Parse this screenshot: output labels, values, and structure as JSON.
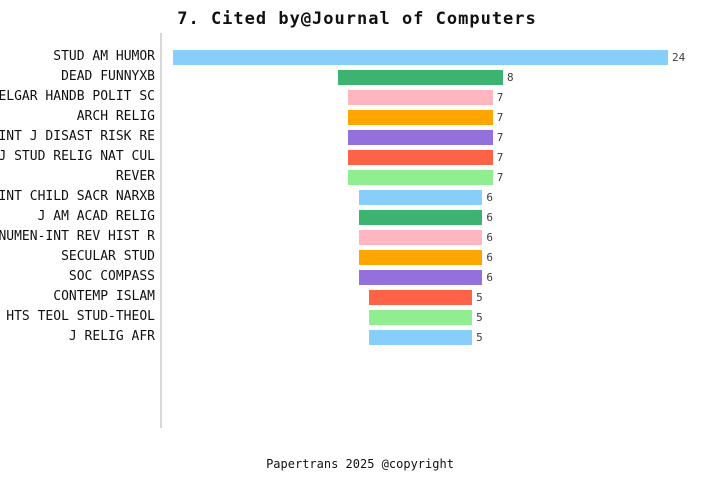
{
  "footer": {
    "caption": "Papertrans 2025 @copyright"
  },
  "chart_data": {
    "type": "bar",
    "orientation": "horizontal-centered-funnel",
    "title": "7. Cited by@Journal of Computers",
    "categories": [
      "STUD AM HUMOR",
      "DEAD FUNNYXB",
      "ELGAR HANDB POLIT SC",
      "ARCH RELIG",
      "INT J DISAST RISK RE",
      "J STUD RELIG NAT CUL",
      "REVER",
      "INT CHILD SACR NARXB",
      "J AM ACAD RELIG",
      "NUMEN-INT REV HIST R",
      "SECULAR STUD",
      "SOC COMPASS",
      "CONTEMP ISLAM",
      "HTS TEOL STUD-THEOL",
      "J RELIG AFR"
    ],
    "values": [
      24,
      8,
      7,
      7,
      7,
      7,
      7,
      6,
      6,
      6,
      6,
      6,
      5,
      5,
      5
    ],
    "bar_colors": [
      "#87CEFA",
      "#3CB371",
      "#FFB6C1",
      "#FFA500",
      "#9370DB",
      "#FF6347",
      "#90EE90",
      "#87CEFA",
      "#3CB371",
      "#FFB6C1",
      "#FFA500",
      "#9370DB",
      "#FF6347",
      "#90EE90",
      "#87CEFA"
    ],
    "palette_cycle": [
      "#87CEFA",
      "#3CB371",
      "#FFB6C1",
      "#FFA500",
      "#9370DB",
      "#FF6347",
      "#90EE90"
    ],
    "value_label_color": "#3d3d3d",
    "axis_line_color": "#d8d8d8",
    "grid": false,
    "legend": "none",
    "value_labels_shown": true,
    "xlabel": "",
    "ylabel": "",
    "max_value": 24
  }
}
